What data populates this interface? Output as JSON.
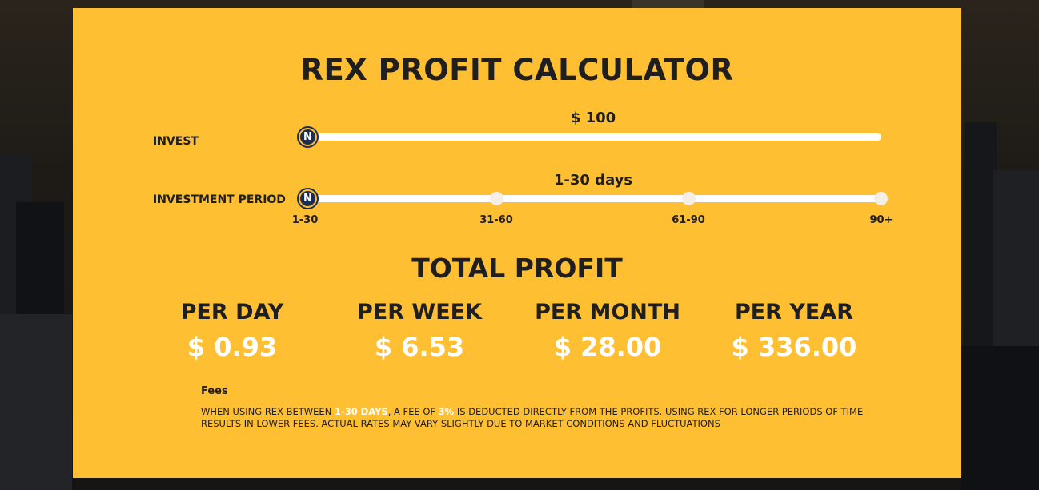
{
  "title": "REX PROFIT CALCULATOR",
  "invest": {
    "label": "INVEST",
    "value_display": "$ 100",
    "slider_fraction": 0,
    "thumb_letter": "N"
  },
  "period": {
    "label": "INVESTMENT PERIOD",
    "value_display": "1-30 days",
    "selected_index": 0,
    "thumb_letter": "N",
    "options": [
      "1-30",
      "31-60",
      "61-90",
      "90+"
    ]
  },
  "profit": {
    "title": "TOTAL PROFIT",
    "items": [
      {
        "label": "PER DAY",
        "value": "$ 0.93"
      },
      {
        "label": "PER WEEK",
        "value": "$ 6.53"
      },
      {
        "label": "PER MONTH",
        "value": "$ 28.00"
      },
      {
        "label": "PER YEAR",
        "value": "$ 336.00"
      }
    ]
  },
  "fees": {
    "title": "Fees",
    "text_part1": "When using REX between ",
    "highlight_days": "1-30 days",
    "text_part2": ", a fee of ",
    "highlight_fee": "3%",
    "text_part3": " is deducted directly from the profits. Using REX for longer periods of time results in lower fees. Actual rates may vary slightly due to market conditions and fluctuations"
  },
  "colors": {
    "card_bg": "#ffbf33",
    "track": "#ffffff",
    "thumb_navy": "#1c2d55",
    "text_dark": "#1f1f1f",
    "value_white": "#ffffff"
  }
}
